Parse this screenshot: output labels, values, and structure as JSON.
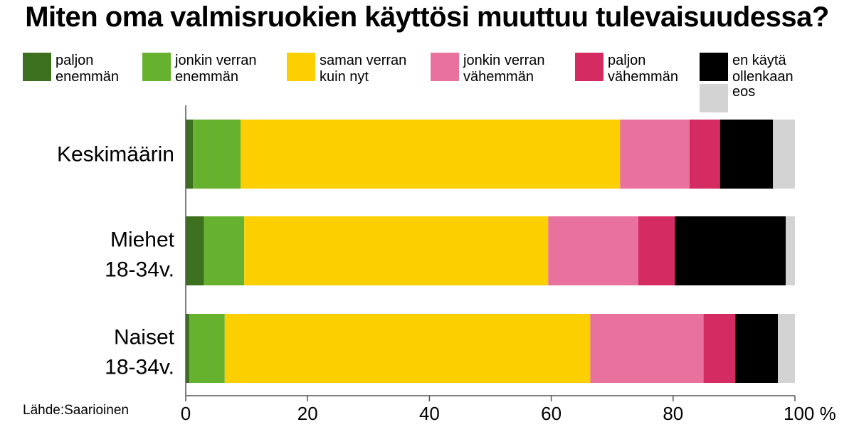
{
  "chart_data": {
    "type": "bar",
    "stacked": true,
    "orientation": "horizontal",
    "title": "Miten oma valmisruokien käyttösi muuttuu tulevaisuudessa?",
    "xlim": [
      0,
      100
    ],
    "grid": false,
    "legend_position": "top",
    "x_ticks": [
      "0",
      "20",
      "40",
      "60",
      "80",
      "100 %"
    ],
    "categories": [
      {
        "line1": "Keskimäärin",
        "line2": ""
      },
      {
        "line1": "Miehet",
        "line2": "18-34v."
      },
      {
        "line1": "Naiset",
        "line2": "18-34v."
      }
    ],
    "series": [
      {
        "name": "paljon\nenemmän",
        "color": "#3c6f1e",
        "values": [
          1.2,
          3.0,
          0.6
        ]
      },
      {
        "name": "jonkin verran\nenemmän",
        "color": "#66b22e",
        "values": [
          7.8,
          6.6,
          5.8
        ]
      },
      {
        "name": "saman verran\nkuin nyt",
        "color": "#fccf00",
        "values": [
          62.3,
          49.9,
          60.0
        ]
      },
      {
        "name": "jonkin verran\nvähemmän",
        "color": "#e8719d",
        "values": [
          11.4,
          14.8,
          18.6
        ]
      },
      {
        "name": "paljon\nvähemmän",
        "color": "#d42b63",
        "values": [
          5.0,
          6.0,
          5.2
        ]
      },
      {
        "name": "en käytä\nollenkaan",
        "color": "#000000",
        "values": [
          8.7,
          18.2,
          7.0
        ]
      },
      {
        "name": "eos",
        "color": "#d3d3d3",
        "values": [
          3.6,
          1.5,
          2.8
        ]
      }
    ],
    "source": "Lähde:Saarioinen"
  }
}
